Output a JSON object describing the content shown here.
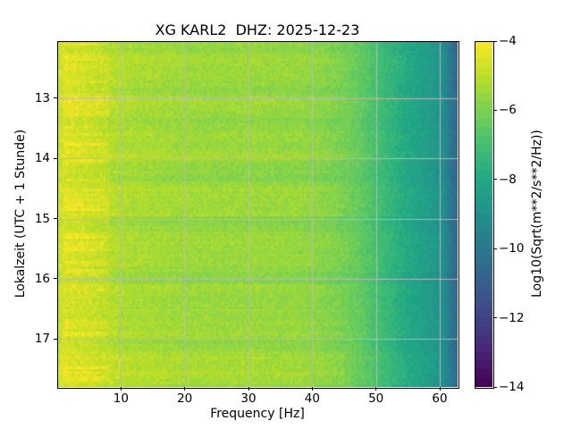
{
  "chart_data": {
    "type": "heatmap",
    "subtype": "seismic-spectrogram",
    "title": "XG KARL2  DHZ: 2025-12-23",
    "xlabel": "Frequency [Hz]",
    "ylabel": "Lokalzeit (UTC + 1 Stunde)",
    "colorbar_label": "Log10(Sqrt(m**2/s**2/Hz))",
    "x_range": [
      0,
      62.8
    ],
    "y_range": [
      12.05,
      17.8
    ],
    "x_ticks": [
      10,
      20,
      30,
      40,
      50,
      60
    ],
    "x_tick_labels": [
      "10",
      "20",
      "30",
      "40",
      "50",
      "60"
    ],
    "y_ticks": [
      13,
      14,
      15,
      16,
      17
    ],
    "y_tick_labels": [
      "13",
      "14",
      "15",
      "16",
      "17"
    ],
    "cbar_range": [
      -4,
      -14
    ],
    "cbar_ticks": [
      -4,
      -6,
      -8,
      -10,
      -12,
      -14
    ],
    "cbar_tick_labels": [
      "−4",
      "−6",
      "−8",
      "−10",
      "−12",
      "−14"
    ],
    "grid": true,
    "grid_color": "#b9b9b9",
    "levels_step": 0.25,
    "colormap": {
      "name": "viridis",
      "stops": [
        [
          0.0,
          68,
          1,
          84
        ],
        [
          0.1,
          72,
          36,
          117
        ],
        [
          0.2,
          65,
          68,
          135
        ],
        [
          0.3,
          53,
          95,
          141
        ],
        [
          0.4,
          42,
          120,
          142
        ],
        [
          0.5,
          33,
          145,
          140
        ],
        [
          0.6,
          34,
          168,
          132
        ],
        [
          0.7,
          68,
          191,
          112
        ],
        [
          0.8,
          122,
          209,
          81
        ],
        [
          0.9,
          189,
          223,
          38
        ],
        [
          1.0,
          253,
          231,
          37
        ]
      ]
    },
    "spectral_profile": [
      [
        0.0,
        -5.2
      ],
      [
        0.4,
        -4.75
      ],
      [
        1.0,
        -4.55
      ],
      [
        2.0,
        -4.65
      ],
      [
        3.0,
        -4.7
      ],
      [
        5.0,
        -4.8
      ],
      [
        7.0,
        -4.95
      ],
      [
        9.0,
        -5.1
      ],
      [
        12.0,
        -5.2
      ],
      [
        16.0,
        -5.3
      ],
      [
        20.0,
        -5.4
      ],
      [
        25.0,
        -5.45
      ],
      [
        30.0,
        -5.45
      ],
      [
        34.0,
        -5.5
      ],
      [
        38.0,
        -5.55
      ],
      [
        41.0,
        -5.65
      ],
      [
        43.0,
        -5.8
      ],
      [
        45.0,
        -6.0
      ],
      [
        47.0,
        -6.3
      ],
      [
        49.0,
        -6.7
      ],
      [
        51.0,
        -7.15
      ],
      [
        53.0,
        -7.55
      ],
      [
        55.0,
        -7.95
      ],
      [
        57.0,
        -8.25
      ],
      [
        59.0,
        -8.6
      ],
      [
        60.5,
        -9.0
      ],
      [
        61.5,
        -9.8
      ],
      [
        62.3,
        -10.4
      ],
      [
        62.8,
        -10.6
      ]
    ],
    "time_events": [
      {
        "hour": 12.15,
        "strength": -0.2,
        "span": 0.2,
        "low_freq_only": false
      },
      {
        "hour": 12.5,
        "strength": 0.2,
        "span": 0.1,
        "low_freq_only": true
      },
      {
        "hour": 12.85,
        "strength": -0.25,
        "span": 0.2,
        "low_freq_only": false
      },
      {
        "hour": 13.1,
        "strength": 0.3,
        "span": 0.12,
        "low_freq_only": true
      },
      {
        "hour": 13.45,
        "strength": -0.2,
        "span": 0.15,
        "low_freq_only": false
      },
      {
        "hour": 13.8,
        "strength": 0.25,
        "span": 0.1,
        "low_freq_only": true
      },
      {
        "hour": 14.2,
        "strength": -0.3,
        "span": 0.3,
        "low_freq_only": false
      },
      {
        "hour": 14.8,
        "strength": 0.35,
        "span": 0.15,
        "low_freq_only": true
      },
      {
        "hour": 15.1,
        "strength": -0.35,
        "span": 0.2,
        "low_freq_only": false
      },
      {
        "hour": 15.45,
        "strength": 0.3,
        "span": 0.12,
        "low_freq_only": true
      },
      {
        "hour": 15.95,
        "strength": -0.25,
        "span": 0.25,
        "low_freq_only": false
      },
      {
        "hour": 16.4,
        "strength": -0.15,
        "span": 0.15,
        "low_freq_only": false
      },
      {
        "hour": 16.75,
        "strength": 0.3,
        "span": 0.12,
        "low_freq_only": true
      },
      {
        "hour": 17.1,
        "strength": -0.2,
        "span": 0.15,
        "low_freq_only": false
      },
      {
        "hour": 17.5,
        "strength": 0.2,
        "span": 0.5,
        "low_freq_only": false
      }
    ],
    "noise_amplitude": 0.26,
    "seed": 20251223
  }
}
